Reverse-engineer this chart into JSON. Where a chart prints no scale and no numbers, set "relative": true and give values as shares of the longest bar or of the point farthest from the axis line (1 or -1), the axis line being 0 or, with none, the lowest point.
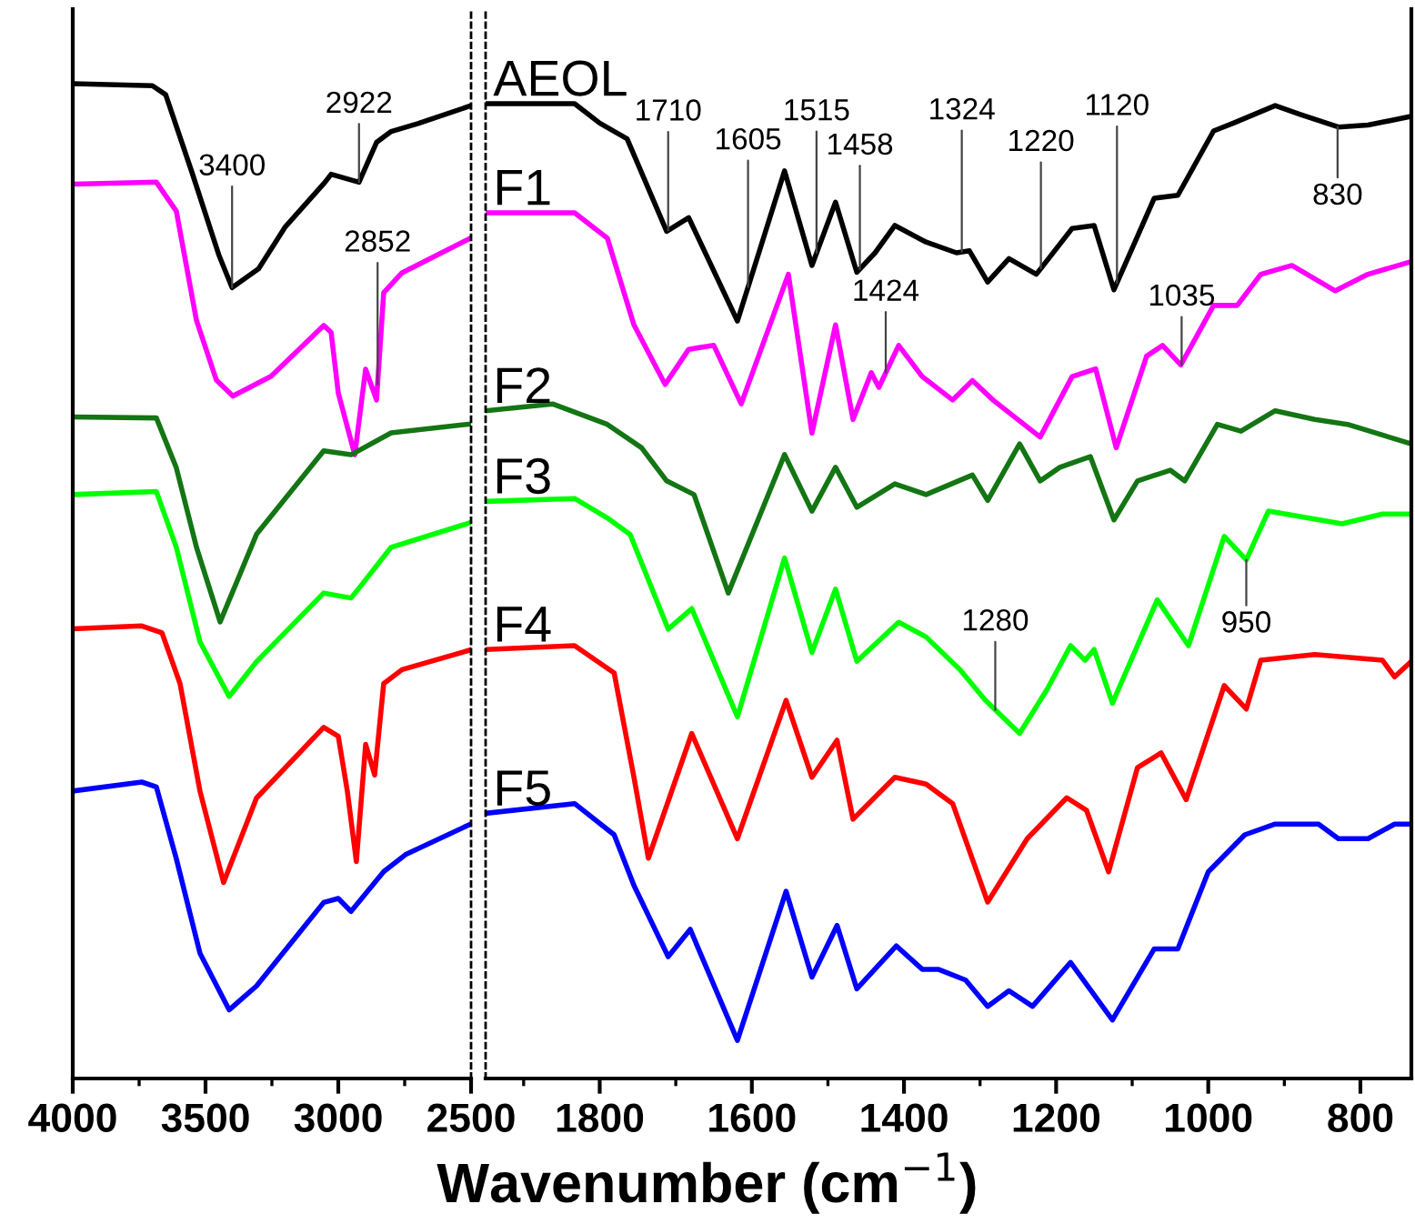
{
  "chart_data": [
    {
      "type": "line",
      "relative": true,
      "xlim": [
        4000,
        2500
      ],
      "xticks": [
        4000,
        {
          "value": 3750,
          "label": null
        },
        3500,
        {
          "value": 3250,
          "label": null
        },
        3000,
        {
          "value": 2750,
          "label": null
        },
        2500
      ],
      "tick_labels": "x",
      "xlabel": "Wavenumber (cm$^{−1}$)",
      "annotations": [
        {
          "text": "3400",
          "x": 3400,
          "y": 0.795
        },
        {
          "text": "2922",
          "x": 2922,
          "y": 0.901
        },
        {
          "text": "2852",
          "x": 2852,
          "y": 0.698
        }
      ],
      "series": [
        {
          "color": "#000000",
          "x": [
            4000,
            3700,
            3650,
            3550,
            3450,
            3400,
            3300,
            3200,
            3050,
            3027,
            2922,
            2856,
            2801,
            2700,
            2500
          ],
          "values": [
            1.0,
            0.998,
            0.989,
            0.91,
            0.828,
            0.795,
            0.814,
            0.856,
            0.901,
            0.909,
            0.901,
            0.941,
            0.952,
            0.96,
            0.978
          ]
        },
        {
          "color": "#ff00ff",
          "x": [
            4000,
            3685,
            3610,
            3534,
            3459,
            3397,
            3253,
            3055,
            3027,
            3000,
            2938,
            2897,
            2856,
            2829,
            2760,
            2500
          ],
          "values": [
            0.899,
            0.901,
            0.872,
            0.762,
            0.702,
            0.686,
            0.706,
            0.757,
            0.75,
            0.689,
            0.627,
            0.713,
            0.682,
            0.79,
            0.81,
            0.845
          ]
        },
        {
          "color": "#137513",
          "x": [
            4000,
            3685,
            3610,
            3534,
            3445,
            3308,
            3055,
            2952,
            2801,
            2500
          ],
          "values": [
            0.665,
            0.664,
            0.614,
            0.534,
            0.459,
            0.547,
            0.631,
            0.627,
            0.649,
            0.658
          ]
        },
        {
          "color": "#00ff00",
          "x": [
            4000,
            3685,
            3610,
            3521,
            3411,
            3308,
            3055,
            2952,
            2904,
            2801,
            2500
          ],
          "values": [
            0.587,
            0.59,
            0.534,
            0.439,
            0.384,
            0.419,
            0.488,
            0.483,
            0.499,
            0.534,
            0.559
          ]
        },
        {
          "color": "#ff0000",
          "x": [
            4000,
            3740,
            3664,
            3596,
            3521,
            3432,
            3308,
            3055,
            3000,
            2966,
            2932,
            2897,
            2863,
            2829,
            2760,
            2500
          ],
          "values": [
            0.452,
            0.455,
            0.448,
            0.397,
            0.289,
            0.197,
            0.282,
            0.353,
            0.344,
            0.289,
            0.218,
            0.336,
            0.305,
            0.397,
            0.411,
            0.431
          ]
        },
        {
          "color": "#0000ff",
          "x": [
            4000,
            3740,
            3685,
            3610,
            3521,
            3411,
            3308,
            3055,
            3000,
            2952,
            2829,
            2747,
            2500
          ],
          "values": [
            0.289,
            0.298,
            0.293,
            0.221,
            0.126,
            0.069,
            0.093,
            0.177,
            0.181,
            0.168,
            0.208,
            0.225,
            0.256
          ]
        }
      ]
    },
    {
      "type": "line",
      "relative": true,
      "xlim": [
        1950,
        733
      ],
      "xticks": [
        {
          "value": 1900,
          "label": null
        },
        1800,
        {
          "value": 1700,
          "label": null
        },
        1600,
        {
          "value": 1500,
          "label": null
        },
        1400,
        {
          "value": 1300,
          "label": null
        },
        1200,
        {
          "value": 1100,
          "label": null
        },
        1000,
        {
          "value": 900,
          "label": null
        },
        800
      ],
      "tick_labels": "x",
      "annotations": [
        {
          "text": "1710",
          "x": 1710,
          "y": 0.87
        },
        {
          "text": "1605",
          "x": 1605,
          "y": 0.812
        },
        {
          "text": "1515",
          "x": 1515,
          "y": 0.847
        },
        {
          "text": "1458",
          "x": 1458,
          "y": 0.83
        },
        {
          "text": "1424",
          "x": 1424,
          "y": 0.724
        },
        {
          "text": "1324",
          "x": 1324,
          "y": 0.848
        },
        {
          "text": "1220",
          "x": 1220,
          "y": 0.831
        },
        {
          "text": "1120",
          "x": 1120,
          "y": 0.816
        },
        {
          "text": "830",
          "x": 830,
          "y": 0.976
        },
        {
          "text": "1035",
          "x": 1035,
          "y": 0.732
        },
        {
          "text": "1280",
          "x": 1280,
          "y": 0.378
        },
        {
          "text": "950",
          "x": 950,
          "y": 0.532
        }
      ],
      "series": [
        {
          "name": "AEOL",
          "color": "#000000",
          "x": [
            1950,
            1833,
            1800,
            1764,
            1712,
            1683,
            1619,
            1557,
            1521,
            1490,
            1462,
            1438,
            1412,
            1371,
            1331,
            1314,
            1290,
            1262,
            1226,
            1179,
            1150,
            1124,
            1071,
            1040,
            993,
            967,
            912,
            879,
            829,
            790,
            733
          ],
          "values": [
            1.0,
            1.0,
            0.98,
            0.964,
            0.869,
            0.883,
            0.777,
            0.931,
            0.834,
            0.899,
            0.827,
            0.847,
            0.875,
            0.858,
            0.847,
            0.849,
            0.817,
            0.841,
            0.825,
            0.872,
            0.875,
            0.809,
            0.903,
            0.906,
            0.972,
            0.98,
            0.998,
            0.989,
            0.976,
            0.978,
            0.987
          ]
        },
        {
          "name": "F1",
          "color": "#ff00ff",
          "x": [
            1950,
            1833,
            1790,
            1755,
            1714,
            1683,
            1650,
            1614,
            1552,
            1521,
            1490,
            1467,
            1443,
            1433,
            1407,
            1376,
            1336,
            1310,
            1283,
            1221,
            1179,
            1148,
            1121,
            1081,
            1060,
            1036,
            993,
            962,
            931,
            890,
            833,
            790,
            733
          ],
          "values": [
            0.888,
            0.888,
            0.862,
            0.773,
            0.712,
            0.748,
            0.752,
            0.692,
            0.825,
            0.662,
            0.773,
            0.676,
            0.724,
            0.709,
            0.752,
            0.72,
            0.696,
            0.716,
            0.696,
            0.658,
            0.72,
            0.728,
            0.647,
            0.741,
            0.752,
            0.732,
            0.793,
            0.793,
            0.825,
            0.834,
            0.808,
            0.825,
            0.838
          ]
        },
        {
          "name": "F2",
          "color": "#137513",
          "x": [
            1950,
            1862,
            1790,
            1745,
            1712,
            1676,
            1631,
            1557,
            1521,
            1490,
            1462,
            1412,
            1371,
            1310,
            1290,
            1248,
            1221,
            1195,
            1155,
            1124,
            1093,
            1050,
            1031,
            988,
            957,
            912,
            860,
            817,
            733
          ],
          "values": [
            0.685,
            0.692,
            0.671,
            0.647,
            0.613,
            0.599,
            0.498,
            0.64,
            0.582,
            0.627,
            0.586,
            0.61,
            0.599,
            0.619,
            0.593,
            0.651,
            0.613,
            0.627,
            0.638,
            0.573,
            0.613,
            0.624,
            0.613,
            0.671,
            0.664,
            0.685,
            0.676,
            0.671,
            0.651
          ]
        },
        {
          "name": "F3",
          "color": "#00ff00",
          "x": [
            1950,
            1833,
            1790,
            1760,
            1710,
            1679,
            1619,
            1557,
            1521,
            1490,
            1462,
            1407,
            1371,
            1326,
            1293,
            1248,
            1212,
            1181,
            1162,
            1150,
            1126,
            1067,
            1026,
            979,
            950,
            921,
            824,
            771,
            733
          ],
          "values": [
            0.592,
            0.595,
            0.575,
            0.558,
            0.461,
            0.482,
            0.371,
            0.534,
            0.437,
            0.502,
            0.428,
            0.468,
            0.453,
            0.419,
            0.388,
            0.354,
            0.399,
            0.444,
            0.429,
            0.44,
            0.385,
            0.491,
            0.444,
            0.556,
            0.532,
            0.582,
            0.569,
            0.579,
            0.579
          ]
        },
        {
          "name": "F4",
          "color": "#ff0000",
          "x": [
            1950,
            1833,
            1781,
            1755,
            1736,
            1679,
            1619,
            1555,
            1521,
            1488,
            1467,
            1412,
            1371,
            1336,
            1290,
            1238,
            1186,
            1160,
            1131,
            1093,
            1062,
            1029,
            979,
            950,
            931,
            860,
            771,
            755,
            733
          ],
          "values": [
            0.44,
            0.444,
            0.416,
            0.309,
            0.226,
            0.354,
            0.246,
            0.388,
            0.309,
            0.347,
            0.266,
            0.309,
            0.302,
            0.282,
            0.181,
            0.246,
            0.288,
            0.275,
            0.212,
            0.319,
            0.334,
            0.286,
            0.403,
            0.379,
            0.429,
            0.435,
            0.429,
            0.412,
            0.428
          ]
        },
        {
          "name": "F5",
          "color": "#0000ff",
          "x": [
            1950,
            1833,
            1781,
            1755,
            1710,
            1681,
            1619,
            1555,
            1521,
            1488,
            1462,
            1410,
            1376,
            1355,
            1319,
            1290,
            1262,
            1231,
            1181,
            1126,
            1071,
            1040,
            1000,
            952,
            912,
            855,
            829,
            790,
            755,
            733
          ],
          "values": [
            0.272,
            0.282,
            0.25,
            0.198,
            0.125,
            0.153,
            0.039,
            0.192,
            0.104,
            0.157,
            0.092,
            0.136,
            0.112,
            0.112,
            0.101,
            0.074,
            0.09,
            0.074,
            0.119,
            0.06,
            0.133,
            0.133,
            0.212,
            0.25,
            0.261,
            0.261,
            0.246,
            0.246,
            0.261,
            0.261
          ]
        }
      ]
    }
  ]
}
